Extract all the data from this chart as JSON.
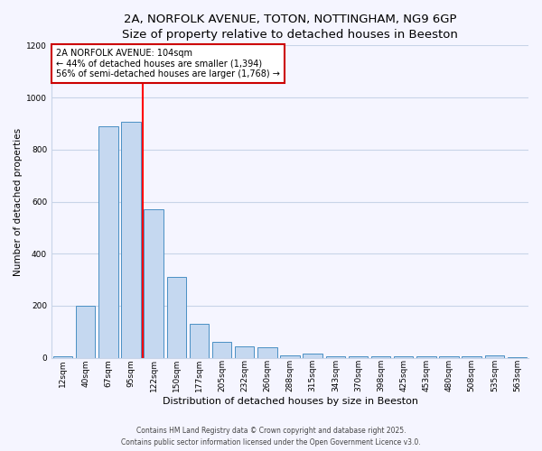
{
  "title_line1": "2A, NORFOLK AVENUE, TOTON, NOTTINGHAM, NG9 6GP",
  "title_line2": "Size of property relative to detached houses in Beeston",
  "xlabel": "Distribution of detached houses by size in Beeston",
  "ylabel": "Number of detached properties",
  "categories": [
    "12sqm",
    "40sqm",
    "67sqm",
    "95sqm",
    "122sqm",
    "150sqm",
    "177sqm",
    "205sqm",
    "232sqm",
    "260sqm",
    "288sqm",
    "315sqm",
    "343sqm",
    "370sqm",
    "398sqm",
    "425sqm",
    "453sqm",
    "480sqm",
    "508sqm",
    "535sqm",
    "563sqm"
  ],
  "values": [
    5,
    200,
    890,
    905,
    570,
    310,
    130,
    60,
    45,
    40,
    10,
    15,
    5,
    5,
    5,
    5,
    5,
    5,
    5,
    10,
    2
  ],
  "bar_color": "#c5d8f0",
  "bar_edge_color": "#4a90c4",
  "vline_x_index": 3.5,
  "vline_color": "red",
  "annotation_title": "2A NORFOLK AVENUE: 104sqm",
  "annotation_line2": "← 44% of detached houses are smaller (1,394)",
  "annotation_line3": "56% of semi-detached houses are larger (1,768) →",
  "annotation_box_color": "#cc0000",
  "ylim": [
    0,
    1200
  ],
  "yticks": [
    0,
    200,
    400,
    600,
    800,
    1000,
    1200
  ],
  "footer_line1": "Contains HM Land Registry data © Crown copyright and database right 2025.",
  "footer_line2": "Contains public sector information licensed under the Open Government Licence v3.0.",
  "background_color": "#f5f5ff",
  "grid_color": "#c8d4e8",
  "title_fontsize": 9.5,
  "subtitle_fontsize": 8.5,
  "ylabel_fontsize": 7.5,
  "xlabel_fontsize": 8,
  "tick_fontsize": 6.5,
  "annotation_fontsize": 7,
  "footer_fontsize": 5.5
}
